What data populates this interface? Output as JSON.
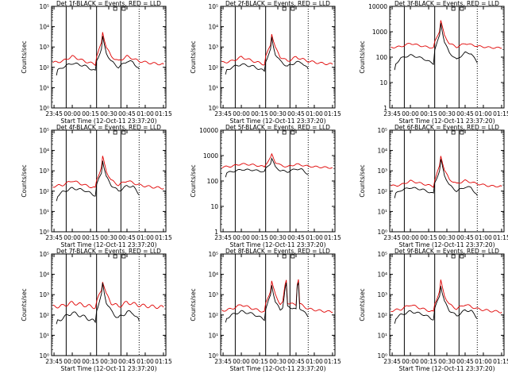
{
  "colors": {
    "events": "#000000",
    "lld": "#e00000",
    "axis": "#000000"
  },
  "x_ticks": [
    "23:45",
    "00:00",
    "00:15",
    "00:30",
    "00:45",
    "01:00",
    "01:15"
  ],
  "x_tick_minutes": [
    -15,
    0,
    15,
    30,
    45,
    60,
    75
  ],
  "xlabel": "Start Time (12-Oct-11 23:37:20)",
  "ylabel": "Counts/sec",
  "solid_lines_min": [
    -5,
    20,
    40
  ],
  "dotted_lines_min": [
    55
  ],
  "chart_data": [
    {
      "type": "line",
      "title": "Det 1f-BLACK = Events, RED = LLD",
      "yscale": "log",
      "ylim": [
        1,
        100000
      ],
      "xlim": [
        -17,
        77
      ],
      "ytick_labels": [
        "10⁰",
        "10¹",
        "10²",
        "10³",
        "10⁴",
        "10⁵"
      ],
      "ytick_values": [
        1,
        10,
        100,
        1000,
        10000,
        100000
      ],
      "noise": 0.05,
      "events": [
        [
          -13,
          40
        ],
        [
          -12,
          70
        ],
        [
          -8,
          100
        ],
        [
          0,
          160
        ],
        [
          10,
          120
        ],
        [
          19,
          65
        ],
        [
          20,
          200
        ],
        [
          24,
          800
        ],
        [
          25,
          3200
        ],
        [
          26,
          1500
        ],
        [
          28,
          500
        ],
        [
          32,
          200
        ],
        [
          38,
          100
        ],
        [
          45,
          200
        ],
        [
          50,
          180
        ],
        [
          55,
          80
        ]
      ],
      "lld": [
        [
          -16,
          170
        ],
        [
          -8,
          200
        ],
        [
          0,
          350
        ],
        [
          10,
          200
        ],
        [
          19,
          140
        ],
        [
          20,
          350
        ],
        [
          24,
          1500
        ],
        [
          25,
          5500
        ],
        [
          26,
          3000
        ],
        [
          28,
          1000
        ],
        [
          32,
          350
        ],
        [
          38,
          200
        ],
        [
          45,
          350
        ],
        [
          55,
          200
        ],
        [
          65,
          160
        ],
        [
          75,
          140
        ]
      ]
    },
    {
      "type": "line",
      "title": "Det 2f-BLACK = Events, RED = LLD",
      "yscale": "log",
      "ylim": [
        1,
        100000
      ],
      "xlim": [
        -17,
        77
      ],
      "ytick_labels": [
        "10⁰",
        "10¹",
        "10²",
        "10³",
        "10⁴",
        "10⁵"
      ],
      "ytick_values": [
        1,
        10,
        100,
        1000,
        10000,
        100000
      ],
      "noise": 0.05,
      "events": [
        [
          -13,
          40
        ],
        [
          -12,
          70
        ],
        [
          -8,
          100
        ],
        [
          0,
          140
        ],
        [
          10,
          110
        ],
        [
          19,
          65
        ],
        [
          20,
          200
        ],
        [
          24,
          700
        ],
        [
          25,
          2800
        ],
        [
          26,
          1300
        ],
        [
          28,
          450
        ],
        [
          32,
          200
        ],
        [
          38,
          110
        ],
        [
          45,
          180
        ],
        [
          50,
          170
        ],
        [
          55,
          80
        ]
      ],
      "lld": [
        [
          -16,
          170
        ],
        [
          -8,
          200
        ],
        [
          0,
          320
        ],
        [
          10,
          200
        ],
        [
          19,
          140
        ],
        [
          20,
          320
        ],
        [
          24,
          1300
        ],
        [
          25,
          4800
        ],
        [
          26,
          2600
        ],
        [
          28,
          900
        ],
        [
          32,
          330
        ],
        [
          38,
          200
        ],
        [
          45,
          320
        ],
        [
          55,
          200
        ],
        [
          65,
          160
        ],
        [
          75,
          140
        ]
      ]
    },
    {
      "type": "line",
      "title": "Det 3f-BLACK = Events, RED = LLD",
      "yscale": "log",
      "ylim": [
        1,
        10000
      ],
      "xlim": [
        -17,
        77
      ],
      "ytick_labels": [
        "1",
        "10",
        "100",
        "1000",
        "10000"
      ],
      "ytick_values": [
        1,
        10,
        100,
        1000,
        10000
      ],
      "noise": 0.03,
      "events": [
        [
          -13,
          30
        ],
        [
          -12,
          55
        ],
        [
          -8,
          90
        ],
        [
          0,
          120
        ],
        [
          10,
          90
        ],
        [
          19,
          55
        ],
        [
          20,
          200
        ],
        [
          24,
          700
        ],
        [
          25,
          2200
        ],
        [
          26,
          1200
        ],
        [
          28,
          400
        ],
        [
          32,
          150
        ],
        [
          38,
          80
        ],
        [
          45,
          150
        ],
        [
          50,
          140
        ],
        [
          55,
          60
        ]
      ],
      "lld": [
        [
          -16,
          240
        ],
        [
          -8,
          260
        ],
        [
          0,
          350
        ],
        [
          10,
          270
        ],
        [
          19,
          230
        ],
        [
          20,
          380
        ],
        [
          24,
          1100
        ],
        [
          25,
          2900
        ],
        [
          26,
          1800
        ],
        [
          28,
          700
        ],
        [
          32,
          350
        ],
        [
          38,
          250
        ],
        [
          45,
          350
        ],
        [
          55,
          270
        ],
        [
          65,
          240
        ],
        [
          75,
          230
        ]
      ]
    },
    {
      "type": "line",
      "title": "Det 4f-BLACK = Events, RED = LLD",
      "yscale": "log",
      "ylim": [
        1,
        100000
      ],
      "xlim": [
        -17,
        77
      ],
      "ytick_labels": [
        "10⁰",
        "10¹",
        "10²",
        "10³",
        "10⁴",
        "10⁵"
      ],
      "ytick_values": [
        1,
        10,
        100,
        1000,
        10000,
        100000
      ],
      "noise": 0.05,
      "events": [
        [
          -13,
          35
        ],
        [
          -12,
          60
        ],
        [
          -8,
          90
        ],
        [
          0,
          140
        ],
        [
          10,
          110
        ],
        [
          19,
          60
        ],
        [
          20,
          200
        ],
        [
          24,
          800
        ],
        [
          25,
          3500
        ],
        [
          26,
          1600
        ],
        [
          28,
          500
        ],
        [
          32,
          200
        ],
        [
          38,
          100
        ],
        [
          45,
          180
        ],
        [
          50,
          170
        ],
        [
          55,
          70
        ]
      ],
      "lld": [
        [
          -16,
          170
        ],
        [
          -8,
          200
        ],
        [
          0,
          330
        ],
        [
          10,
          200
        ],
        [
          19,
          140
        ],
        [
          20,
          340
        ],
        [
          24,
          1500
        ],
        [
          25,
          5000
        ],
        [
          26,
          2800
        ],
        [
          28,
          950
        ],
        [
          32,
          340
        ],
        [
          38,
          200
        ],
        [
          45,
          330
        ],
        [
          55,
          200
        ],
        [
          65,
          160
        ],
        [
          75,
          140
        ]
      ]
    },
    {
      "type": "line",
      "title": "Det 5f-BLACK = Events, RED = LLD",
      "yscale": "log",
      "ylim": [
        1,
        10000
      ],
      "xlim": [
        -17,
        77
      ],
      "ytick_labels": [
        "1",
        "10",
        "100",
        "1000",
        "10000"
      ],
      "ytick_values": [
        1,
        10,
        100,
        1000,
        10000
      ],
      "noise": 0.03,
      "events": [
        [
          -13,
          150
        ],
        [
          -12,
          210
        ],
        [
          -8,
          230
        ],
        [
          0,
          280
        ],
        [
          10,
          270
        ],
        [
          19,
          230
        ],
        [
          20,
          300
        ],
        [
          24,
          500
        ],
        [
          25,
          800
        ],
        [
          26,
          600
        ],
        [
          28,
          350
        ],
        [
          32,
          260
        ],
        [
          38,
          230
        ],
        [
          45,
          300
        ],
        [
          50,
          280
        ],
        [
          55,
          180
        ]
      ],
      "lld": [
        [
          -16,
          350
        ],
        [
          -8,
          380
        ],
        [
          0,
          470
        ],
        [
          10,
          430
        ],
        [
          19,
          360
        ],
        [
          20,
          450
        ],
        [
          24,
          800
        ],
        [
          25,
          1100
        ],
        [
          26,
          900
        ],
        [
          28,
          550
        ],
        [
          32,
          420
        ],
        [
          38,
          360
        ],
        [
          45,
          460
        ],
        [
          55,
          380
        ],
        [
          65,
          350
        ],
        [
          75,
          330
        ]
      ]
    },
    {
      "type": "line",
      "title": "Det 6f-BLACK = Events, RED = LLD",
      "yscale": "log",
      "ylim": [
        1,
        100000
      ],
      "xlim": [
        -17,
        77
      ],
      "ytick_labels": [
        "10⁰",
        "10¹",
        "10²",
        "10³",
        "10⁴",
        "10⁵"
      ],
      "ytick_values": [
        1,
        10,
        100,
        1000,
        10000,
        100000
      ],
      "noise": 0.04,
      "events": [
        [
          -13,
          45
        ],
        [
          -12,
          75
        ],
        [
          -8,
          110
        ],
        [
          0,
          150
        ],
        [
          10,
          120
        ],
        [
          19,
          75
        ],
        [
          20,
          250
        ],
        [
          24,
          1000
        ],
        [
          25,
          3500
        ],
        [
          26,
          2000
        ],
        [
          28,
          600
        ],
        [
          32,
          200
        ],
        [
          38,
          100
        ],
        [
          45,
          160
        ],
        [
          50,
          150
        ],
        [
          55,
          60
        ]
      ],
      "lld": [
        [
          -16,
          180
        ],
        [
          -8,
          200
        ],
        [
          0,
          320
        ],
        [
          10,
          230
        ],
        [
          19,
          170
        ],
        [
          20,
          350
        ],
        [
          24,
          1700
        ],
        [
          25,
          5500
        ],
        [
          26,
          3300
        ],
        [
          28,
          1100
        ],
        [
          32,
          380
        ],
        [
          38,
          230
        ],
        [
          45,
          330
        ],
        [
          55,
          230
        ],
        [
          65,
          180
        ],
        [
          75,
          170
        ]
      ]
    },
    {
      "type": "line",
      "title": "Det 7f-BLACK = Events, RED = LLD",
      "yscale": "log",
      "ylim": [
        1,
        100000
      ],
      "xlim": [
        -17,
        77
      ],
      "ytick_labels": [
        "10⁰",
        "10¹",
        "10²",
        "10³",
        "10⁴",
        "10⁵"
      ],
      "ytick_values": [
        1,
        10,
        100,
        1000,
        10000,
        100000
      ],
      "noise": 0.08,
      "events": [
        [
          -13,
          30
        ],
        [
          -12,
          50
        ],
        [
          -8,
          70
        ],
        [
          0,
          130
        ],
        [
          10,
          80
        ],
        [
          19,
          45
        ],
        [
          20,
          180
        ],
        [
          24,
          900
        ],
        [
          25,
          3200
        ],
        [
          26,
          1500
        ],
        [
          28,
          450
        ],
        [
          32,
          150
        ],
        [
          38,
          70
        ],
        [
          45,
          140
        ],
        [
          50,
          130
        ],
        [
          55,
          50
        ]
      ],
      "lld": [
        [
          -16,
          250
        ],
        [
          -8,
          280
        ],
        [
          0,
          400
        ],
        [
          10,
          300
        ],
        [
          19,
          240
        ],
        [
          20,
          420
        ],
        [
          24,
          1800
        ],
        [
          25,
          5000
        ],
        [
          26,
          3000
        ],
        [
          28,
          1000
        ],
        [
          32,
          400
        ],
        [
          38,
          260
        ],
        [
          45,
          420
        ],
        [
          55,
          300
        ],
        [
          65,
          260
        ],
        [
          75,
          240
        ]
      ]
    },
    {
      "type": "line",
      "title": "Det 8f-BLACK = Events, RED = LLD",
      "yscale": "log",
      "ylim": [
        1,
        100000
      ],
      "xlim": [
        -17,
        77
      ],
      "ytick_labels": [
        "10⁰",
        "10¹",
        "10²",
        "10³",
        "10⁴",
        "10⁵"
      ],
      "ytick_values": [
        1,
        10,
        100,
        1000,
        10000,
        100000
      ],
      "noise": 0.05,
      "events": [
        [
          -13,
          40
        ],
        [
          -12,
          70
        ],
        [
          -8,
          100
        ],
        [
          0,
          150
        ],
        [
          10,
          110
        ],
        [
          19,
          60
        ],
        [
          20,
          200
        ],
        [
          24,
          900
        ],
        [
          25,
          3000
        ],
        [
          26,
          1500
        ],
        [
          28,
          450
        ],
        [
          32,
          170
        ],
        [
          34,
          250
        ],
        [
          36,
          2000
        ],
        [
          37,
          3500
        ],
        [
          38,
          250
        ],
        [
          43,
          220
        ],
        [
          45,
          180
        ],
        [
          46,
          2500
        ],
        [
          47,
          4000
        ],
        [
          48,
          220
        ],
        [
          50,
          180
        ],
        [
          55,
          80
        ]
      ],
      "lld": [
        [
          -16,
          160
        ],
        [
          -8,
          200
        ],
        [
          0,
          320
        ],
        [
          10,
          200
        ],
        [
          19,
          140
        ],
        [
          20,
          330
        ],
        [
          24,
          1600
        ],
        [
          25,
          5000
        ],
        [
          26,
          2600
        ],
        [
          28,
          950
        ],
        [
          32,
          350
        ],
        [
          34,
          400
        ],
        [
          36,
          3000
        ],
        [
          37,
          5500
        ],
        [
          38,
          400
        ],
        [
          43,
          330
        ],
        [
          45,
          320
        ],
        [
          46,
          3500
        ],
        [
          47,
          6000
        ],
        [
          48,
          350
        ],
        [
          55,
          200
        ],
        [
          65,
          160
        ],
        [
          75,
          140
        ]
      ]
    },
    {
      "type": "line",
      "title": "Det 9f-BLACK = Events, RED = LLD",
      "yscale": "log",
      "ylim": [
        1,
        100000
      ],
      "xlim": [
        -17,
        77
      ],
      "ytick_labels": [
        "10⁰",
        "10¹",
        "10²",
        "10³",
        "10⁴",
        "10⁵"
      ],
      "ytick_values": [
        1,
        10,
        100,
        1000,
        10000,
        100000
      ],
      "noise": 0.05,
      "events": [
        [
          -13,
          40
        ],
        [
          -12,
          70
        ],
        [
          -8,
          100
        ],
        [
          0,
          150
        ],
        [
          10,
          110
        ],
        [
          19,
          60
        ],
        [
          20,
          200
        ],
        [
          24,
          900
        ],
        [
          25,
          3000
        ],
        [
          26,
          1400
        ],
        [
          28,
          450
        ],
        [
          32,
          170
        ],
        [
          38,
          90
        ],
        [
          45,
          170
        ],
        [
          50,
          160
        ],
        [
          55,
          70
        ]
      ],
      "lld": [
        [
          -16,
          160
        ],
        [
          -8,
          190
        ],
        [
          0,
          320
        ],
        [
          10,
          200
        ],
        [
          19,
          140
        ],
        [
          20,
          330
        ],
        [
          24,
          1500
        ],
        [
          25,
          5000
        ],
        [
          26,
          2600
        ],
        [
          28,
          900
        ],
        [
          32,
          330
        ],
        [
          38,
          200
        ],
        [
          45,
          330
        ],
        [
          55,
          200
        ],
        [
          65,
          160
        ],
        [
          75,
          140
        ]
      ]
    }
  ]
}
